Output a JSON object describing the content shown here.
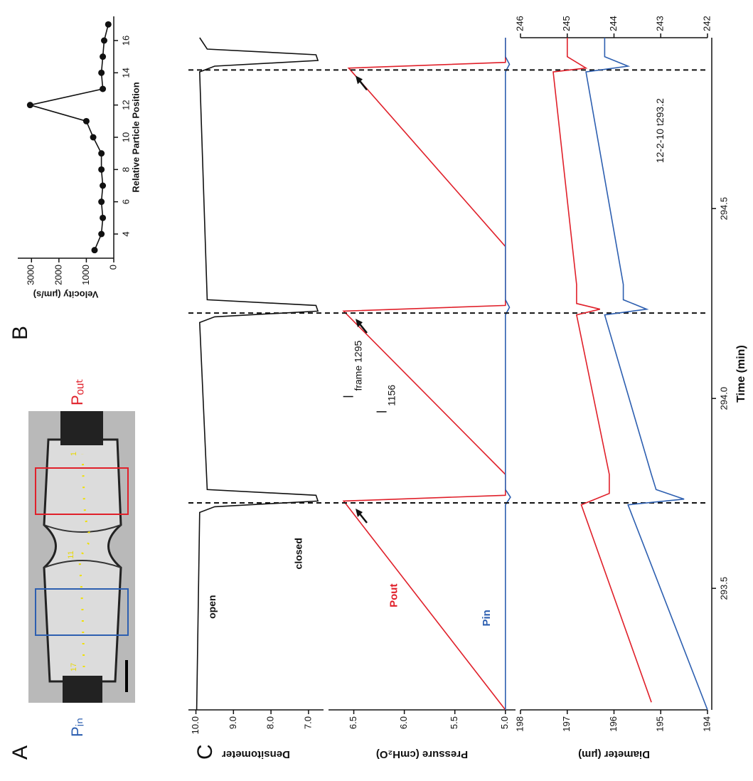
{
  "panel_a": {
    "label": "A",
    "p_in": "Pᵢₙ",
    "p_out": "Pₒᵤₜ",
    "dot_labels": [
      "17",
      "11",
      "1"
    ]
  },
  "chart_data": [
    {
      "type": "line",
      "panel_label": "B",
      "markers": true,
      "color": "#111111",
      "xlabel": "Relative Particle Position",
      "ylabel": "Velocity (μm/s)",
      "xlim": [
        2.5,
        17.5
      ],
      "xticks": [
        4,
        6,
        8,
        10,
        12,
        14,
        16
      ],
      "ylim": [
        0,
        3500
      ],
      "yticks": [
        0,
        1000,
        2000,
        3000
      ],
      "series": [
        {
          "color": "#111111",
          "x": [
            3,
            4,
            5,
            6,
            7,
            8,
            9,
            10,
            11,
            12,
            13,
            14,
            15,
            16,
            17
          ],
          "values": [
            700,
            450,
            400,
            450,
            400,
            450,
            450,
            750,
            1000,
            3050,
            400,
            450,
            400,
            350,
            200
          ]
        }
      ]
    },
    {
      "type": "line",
      "panel_label": "C",
      "ylabel": "Densitometer",
      "xlim": [
        293.18,
        294.95
      ],
      "ylim": [
        6.6,
        10.2
      ],
      "yticks": [
        {
          "value": 7,
          "label": "7.0"
        },
        {
          "value": 8,
          "label": "8.0"
        },
        {
          "value": 9,
          "label": "9.0"
        },
        {
          "value": 10,
          "label": "10.0"
        }
      ],
      "annotations": [
        "open",
        "closed"
      ],
      "series": [
        {
          "color": "#111111",
          "x": [
            293.18,
            293.7,
            293.715,
            293.73,
            293.745,
            293.76,
            294.2,
            294.215,
            294.23,
            294.245,
            294.26,
            294.86,
            294.875,
            294.89,
            294.905,
            294.92,
            294.95
          ],
          "values": [
            9.98,
            9.9,
            9.5,
            6.75,
            6.8,
            9.7,
            9.9,
            9.5,
            6.75,
            6.8,
            9.7,
            9.9,
            9.5,
            6.75,
            6.8,
            9.7,
            9.9
          ]
        }
      ]
    },
    {
      "type": "line",
      "ylabel": "Pressure (cmH₂O)",
      "xlim": [
        293.18,
        294.95
      ],
      "ylim": [
        4.9,
        6.75
      ],
      "yticks": [
        {
          "value": 5,
          "label": "5.0"
        },
        5.5,
        {
          "value": 6,
          "label": "6.0"
        },
        6.5
      ],
      "annotations": [
        "frame 1295",
        "1156"
      ],
      "series": [
        {
          "name": "Pout",
          "color": "#e0202a",
          "x": [
            293.18,
            293.73,
            293.745,
            293.8,
            294.23,
            294.245,
            294.4,
            294.87,
            294.885,
            294.95
          ],
          "values": [
            5.0,
            6.6,
            5.0,
            5.0,
            6.6,
            5.0,
            5.0,
            6.55,
            5.0,
            5.0
          ]
        },
        {
          "name": "Pin",
          "color": "#2d5fb0",
          "x": [
            293.18,
            293.72,
            293.74,
            293.76,
            294.22,
            294.24,
            294.26,
            294.86,
            294.88,
            294.9,
            294.95
          ],
          "values": [
            5.0,
            5.0,
            4.95,
            5.0,
            5.0,
            4.96,
            5.0,
            5.0,
            4.96,
            5.0,
            5.0
          ]
        }
      ]
    },
    {
      "type": "line",
      "ylabel": "Diameter (μm)",
      "xlabel": "Time (min)",
      "xlim": [
        293.18,
        294.95
      ],
      "xticks": [
        293.5,
        {
          "value": 294,
          "label": "294.0"
        },
        294.5
      ],
      "ylim": [
        194,
        198
      ],
      "yticks": [
        194,
        195,
        196,
        197,
        198
      ],
      "y2lim": [
        242,
        246
      ],
      "y2ticks": [
        242,
        243,
        244,
        245,
        246
      ],
      "vlines": [
        293.725,
        294.225,
        294.865
      ],
      "annotations": [
        "12-2-10 t293.2"
      ],
      "series": [
        {
          "color": "#2d5fb0",
          "x": [
            293.18,
            293.72,
            293.735,
            293.76,
            293.8,
            294.22,
            294.235,
            294.26,
            294.3,
            294.86,
            294.875,
            294.9,
            294.95
          ],
          "values": [
            194.0,
            195.7,
            194.5,
            195.1,
            195.2,
            196.2,
            195.3,
            195.8,
            195.8,
            196.6,
            195.7,
            196.2,
            196.2
          ]
        },
        {
          "color": "#e0202a",
          "axis": "y2",
          "x": [
            293.2,
            293.72,
            293.735,
            293.75,
            293.8,
            294.22,
            294.235,
            294.25,
            294.3,
            294.86,
            294.87,
            294.9,
            294.95
          ],
          "values": [
            243.2,
            244.7,
            244.4,
            244.1,
            244.1,
            244.8,
            244.3,
            244.8,
            244.8,
            245.3,
            244.6,
            245.0,
            245.0
          ]
        }
      ]
    }
  ]
}
